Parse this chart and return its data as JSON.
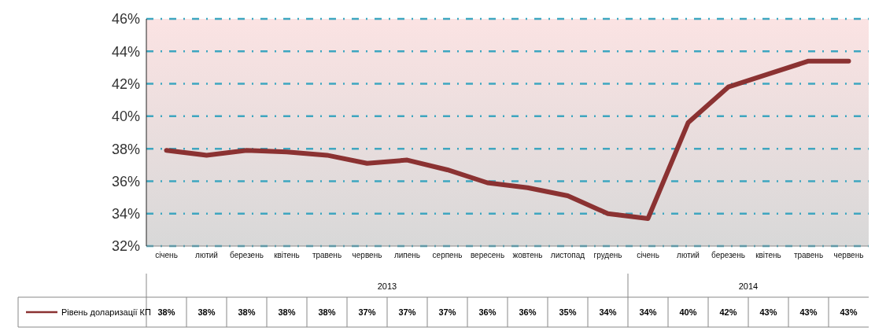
{
  "chart_data": {
    "type": "line",
    "categories": [
      "січень",
      "лютий",
      "березень",
      "квітень",
      "травень",
      "червень",
      "липень",
      "серпень",
      "вересень",
      "жовтень",
      "листопад",
      "грудень",
      "січень",
      "лютий",
      "березень",
      "квітень",
      "травень",
      "червень"
    ],
    "series": [
      {
        "name": "Рівень доларизації КП",
        "color": "#8b3232",
        "values": [
          37.9,
          37.6,
          37.9,
          37.8,
          37.6,
          37.1,
          37.3,
          36.7,
          35.9,
          35.6,
          35.1,
          34.0,
          33.7,
          39.6,
          41.8,
          42.6,
          43.4,
          43.4
        ],
        "value_labels": [
          "38%",
          "38%",
          "38%",
          "38%",
          "38%",
          "37%",
          "37%",
          "37%",
          "36%",
          "36%",
          "35%",
          "34%",
          "34%",
          "40%",
          "42%",
          "43%",
          "43%",
          "43%"
        ]
      }
    ],
    "annotations": [
      "2013",
      "2014"
    ],
    "ylim": [
      32,
      46
    ],
    "yticks": [
      {
        "value": 32,
        "label": "32%"
      },
      {
        "value": 34,
        "label": "34%"
      },
      {
        "value": 36,
        "label": "36%"
      },
      {
        "value": 38,
        "label": "38%"
      },
      {
        "value": 40,
        "label": "40%"
      },
      {
        "value": 42,
        "label": "42%"
      },
      {
        "value": 44,
        "label": "44%"
      },
      {
        "value": 46,
        "label": "46%"
      }
    ],
    "grid": "y",
    "legend": "bottom",
    "marker": "none",
    "line_style": "solid"
  }
}
